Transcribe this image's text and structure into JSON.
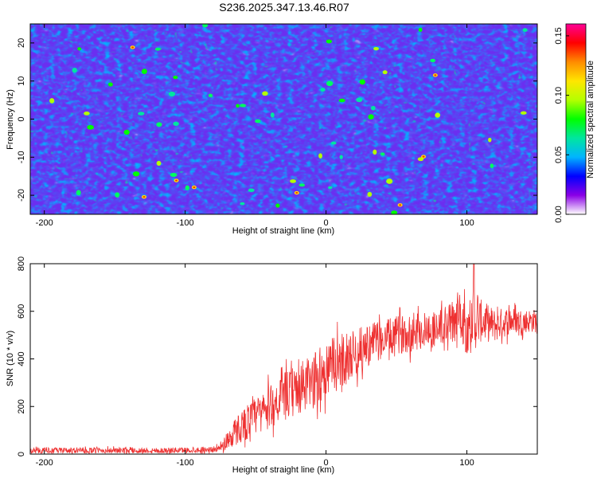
{
  "chart_data": [
    {
      "type": "heatmap",
      "title": "S236.2025.347.13.46.R07",
      "xlabel": "Height of straight line (km)",
      "ylabel": "Frequency (Hz)",
      "xlim": [
        -210,
        150
      ],
      "ylim": [
        -25,
        25
      ],
      "xticks": [
        -200,
        -100,
        0,
        100
      ],
      "yticks": [
        -20,
        -10,
        0,
        10,
        20
      ],
      "colorbar": {
        "label": "Normalized spectral amplitude",
        "range": [
          0.0,
          0.16
        ],
        "ticks": [
          "0.00",
          "0.05",
          "0.10",
          "0.15"
        ],
        "colormap": [
          "#ffffff",
          "#8a00e6",
          "#0000ff",
          "#00b4ff",
          "#00e6a0",
          "#00ff00",
          "#b4ff00",
          "#ffe600",
          "#ff8c00",
          "#ff0000",
          "#ff0096"
        ]
      },
      "description_values": {
        "background_level": 0.02,
        "peak_level": 0.16
      }
    },
    {
      "type": "line",
      "title": "",
      "xlabel": "Height of straight line (km)",
      "ylabel": "SNR (10 * v/v)",
      "xlim": [
        -210,
        150
      ],
      "ylim": [
        0,
        800
      ],
      "xticks": [
        -200,
        -100,
        0,
        100
      ],
      "yticks": [
        0,
        200,
        400,
        600,
        800
      ],
      "series": [
        {
          "name": "SNR",
          "color": "#ee3030",
          "x": [
            -210,
            -190,
            -170,
            -150,
            -130,
            -110,
            -90,
            -80,
            -75,
            -70,
            -65,
            -60,
            -50,
            -40,
            -30,
            -20,
            -10,
            0,
            10,
            20,
            30,
            40,
            50,
            60,
            70,
            80,
            90,
            95,
            100,
            105,
            110,
            120,
            130,
            140,
            150
          ],
          "y": [
            15,
            15,
            15,
            15,
            15,
            15,
            18,
            20,
            25,
            60,
            90,
            120,
            160,
            200,
            240,
            270,
            300,
            350,
            390,
            420,
            460,
            480,
            500,
            510,
            520,
            530,
            550,
            600,
            530,
            550,
            560,
            540,
            560,
            560,
            560
          ],
          "noise": [
            12,
            12,
            12,
            12,
            12,
            12,
            12,
            12,
            15,
            45,
            60,
            70,
            80,
            90,
            100,
            110,
            120,
            120,
            120,
            100,
            90,
            80,
            80,
            80,
            80,
            80,
            100,
            100,
            120,
            120,
            90,
            70,
            60,
            50,
            50
          ]
        }
      ]
    }
  ]
}
